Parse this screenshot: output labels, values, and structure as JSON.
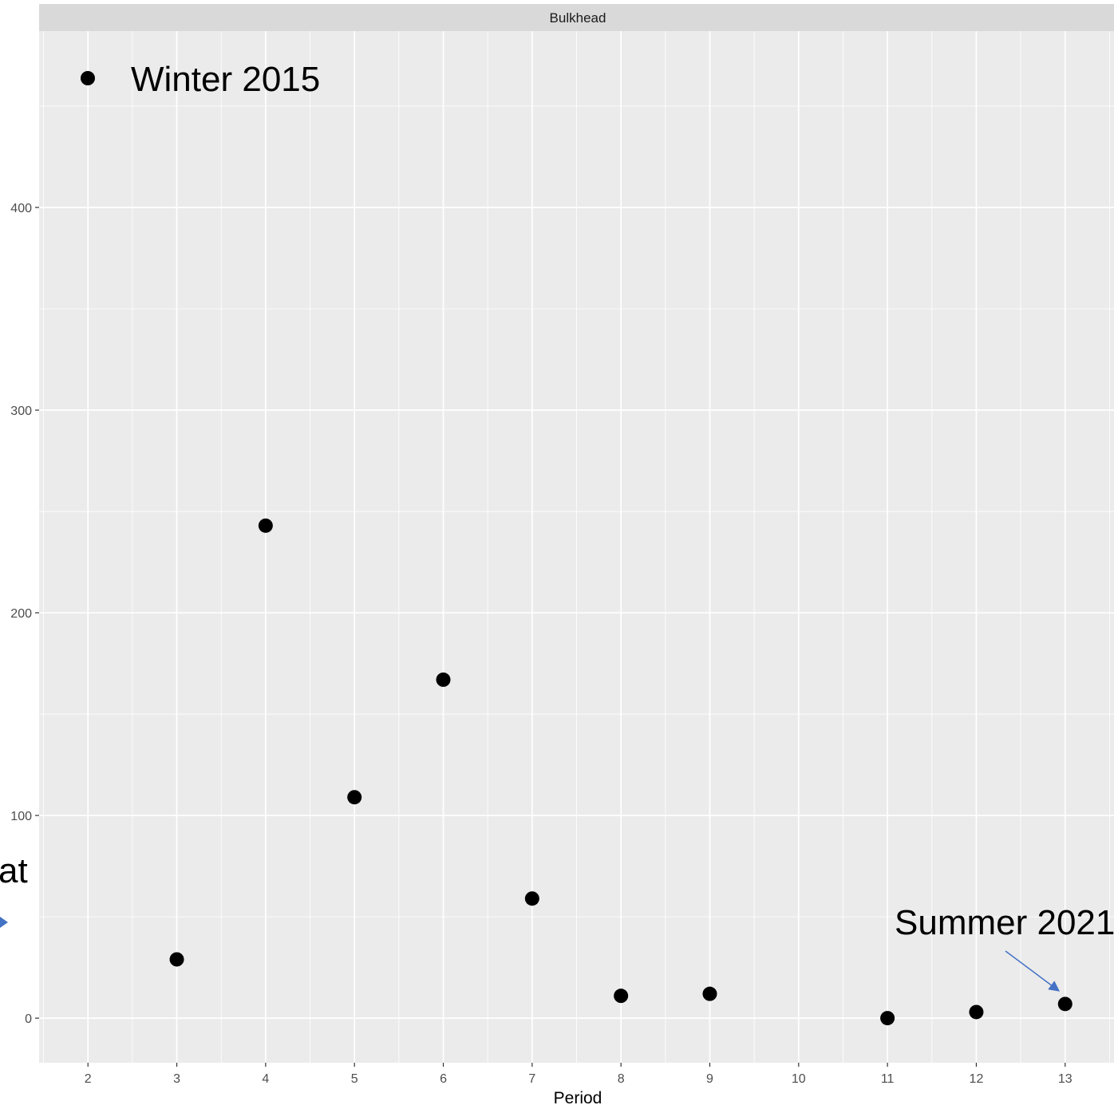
{
  "chart_data": {
    "type": "scatter",
    "facet_label": "Bulkhead",
    "xlabel": "Period",
    "ylabel": "",
    "x_ticks": [
      2,
      3,
      4,
      5,
      6,
      7,
      8,
      9,
      10,
      11,
      12,
      13
    ],
    "y_ticks": [
      0,
      100,
      200,
      300,
      400
    ],
    "xlim": [
      1.45,
      13.55
    ],
    "ylim": [
      -22,
      487
    ],
    "grid": true,
    "series": [
      {
        "points": [
          {
            "x": 3,
            "y": 29
          },
          {
            "x": 4,
            "y": 243
          },
          {
            "x": 5,
            "y": 109
          },
          {
            "x": 6,
            "y": 167
          },
          {
            "x": 7,
            "y": 59
          },
          {
            "x": 8,
            "y": 11
          },
          {
            "x": 9,
            "y": 12
          },
          {
            "x": 11,
            "y": 0
          },
          {
            "x": 12,
            "y": 3
          },
          {
            "x": 13,
            "y": 7
          }
        ]
      }
    ],
    "legend": {
      "label": "Winter 2015",
      "placement": "top-left"
    },
    "annotations": [
      {
        "text": "Summer 2021",
        "points_to": {
          "x": 13,
          "y": 7
        }
      },
      {
        "text": "at"
      }
    ],
    "colors": {
      "point": "#000000",
      "panel": "#ebebeb",
      "strip": "#d9d9d9",
      "grid": "#ffffff",
      "arrow": "#4472c4"
    }
  }
}
